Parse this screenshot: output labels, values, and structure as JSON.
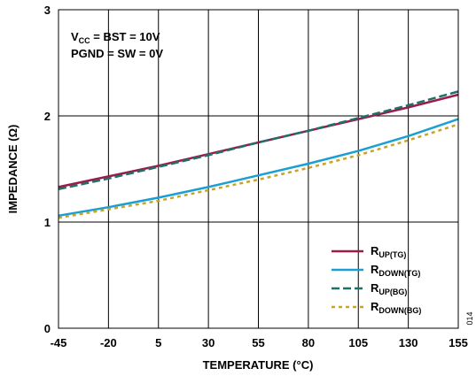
{
  "chart_data": {
    "type": "line",
    "xlabel": "TEMPERATURE (°C)",
    "ylabel": "IMPEDANCE (Ω)",
    "xlim": [
      -45,
      155
    ],
    "ylim": [
      0,
      3
    ],
    "x_ticks": [
      "-45",
      "-20",
      "5",
      "30",
      "55",
      "80",
      "105",
      "130",
      "155"
    ],
    "y_ticks": [
      "0",
      "1",
      "2",
      "3"
    ],
    "grid": true,
    "legend_position": "bottom-right",
    "annotation": {
      "line1": {
        "main": "V",
        "sub": "CC",
        "rest": " = BST = 10V"
      },
      "line2": "PGND = SW = 0V"
    },
    "figure_id": "014",
    "x": [
      -45,
      -20,
      5,
      30,
      55,
      80,
      105,
      130,
      155
    ],
    "series": [
      {
        "name_main": "R",
        "name_sub": "UP(TG)",
        "color": "#9b1b4a",
        "dash": "solid",
        "values": [
          1.33,
          1.43,
          1.53,
          1.64,
          1.75,
          1.86,
          1.97,
          2.08,
          2.2
        ]
      },
      {
        "name_main": "R",
        "name_sub": "DOWN(TG)",
        "color": "#1a9fd4",
        "dash": "solid",
        "values": [
          1.06,
          1.14,
          1.23,
          1.33,
          1.44,
          1.55,
          1.67,
          1.81,
          1.97
        ]
      },
      {
        "name_main": "R",
        "name_sub": "UP(BG)",
        "color": "#1f6f6a",
        "dash": "dashed",
        "values": [
          1.31,
          1.41,
          1.52,
          1.63,
          1.75,
          1.86,
          1.98,
          2.1,
          2.23
        ]
      },
      {
        "name_main": "R",
        "name_sub": "DOWN(BG)",
        "color": "#c9a227",
        "dash": "dotted",
        "values": [
          1.04,
          1.12,
          1.2,
          1.3,
          1.4,
          1.51,
          1.63,
          1.77,
          1.92
        ]
      }
    ]
  }
}
